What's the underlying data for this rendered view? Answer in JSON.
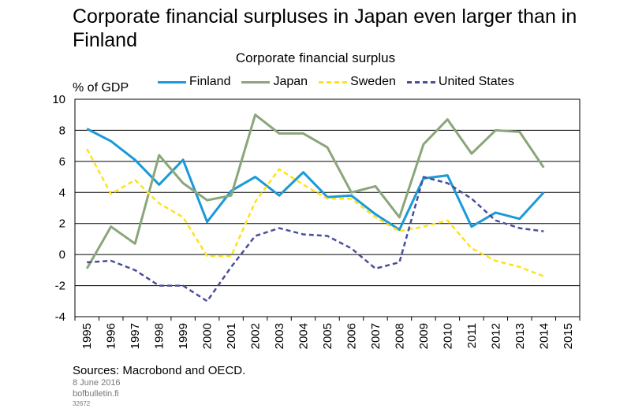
{
  "page": {
    "headline": "Corporate financial surpluses in Japan even larger than in Finland",
    "source": "Sources: Macrobond and OECD.",
    "date": "8 June 2016",
    "site": "bofbulletin.fi",
    "code": "32672"
  },
  "chart_data": {
    "type": "line",
    "title": "Corporate financial surplus",
    "ylabel": "% of GDP",
    "xlabel": "",
    "ylim": [
      -4,
      10
    ],
    "yticks": [
      -4,
      -2,
      0,
      2,
      4,
      6,
      8,
      10
    ],
    "x": [
      "1995",
      "1996",
      "1997",
      "1998",
      "1999",
      "2000",
      "2001",
      "2002",
      "2003",
      "2004",
      "2005",
      "2006",
      "2007",
      "2008",
      "2009",
      "2010",
      "2011",
      "2012",
      "2013",
      "2014",
      "2015"
    ],
    "grid": "horizontal",
    "legend_position": "top",
    "series": [
      {
        "name": "Finland",
        "color": "#1a9ad6",
        "style": "solid",
        "values": [
          8.1,
          7.3,
          6.1,
          4.5,
          6.1,
          2.1,
          4.1,
          5.0,
          3.8,
          5.3,
          3.7,
          3.8,
          2.6,
          1.6,
          4.9,
          5.1,
          1.8,
          2.7,
          2.3,
          4.0,
          null
        ]
      },
      {
        "name": "Japan",
        "color": "#8aa67a",
        "style": "solid",
        "values": [
          -0.9,
          1.8,
          0.7,
          6.4,
          4.6,
          3.5,
          3.8,
          9.0,
          7.8,
          7.8,
          6.9,
          4.0,
          4.4,
          2.4,
          7.1,
          8.7,
          6.5,
          8.0,
          7.9,
          5.6,
          null
        ]
      },
      {
        "name": "Sweden",
        "color": "#ffe21a",
        "style": "dashed",
        "values": [
          6.8,
          3.9,
          4.8,
          3.3,
          2.4,
          -0.1,
          -0.1,
          3.4,
          5.5,
          4.5,
          3.6,
          3.6,
          2.4,
          1.5,
          1.8,
          2.2,
          0.4,
          -0.4,
          -0.8,
          -1.4,
          null
        ]
      },
      {
        "name": "United States",
        "color": "#4a4e9a",
        "style": "dashed",
        "values": [
          -0.5,
          -0.4,
          -1.0,
          -2.0,
          -2.0,
          -3.0,
          -0.8,
          1.2,
          1.7,
          1.3,
          1.2,
          0.4,
          -0.9,
          -0.5,
          5.0,
          4.6,
          3.6,
          2.2,
          1.7,
          1.5,
          null
        ]
      }
    ]
  }
}
